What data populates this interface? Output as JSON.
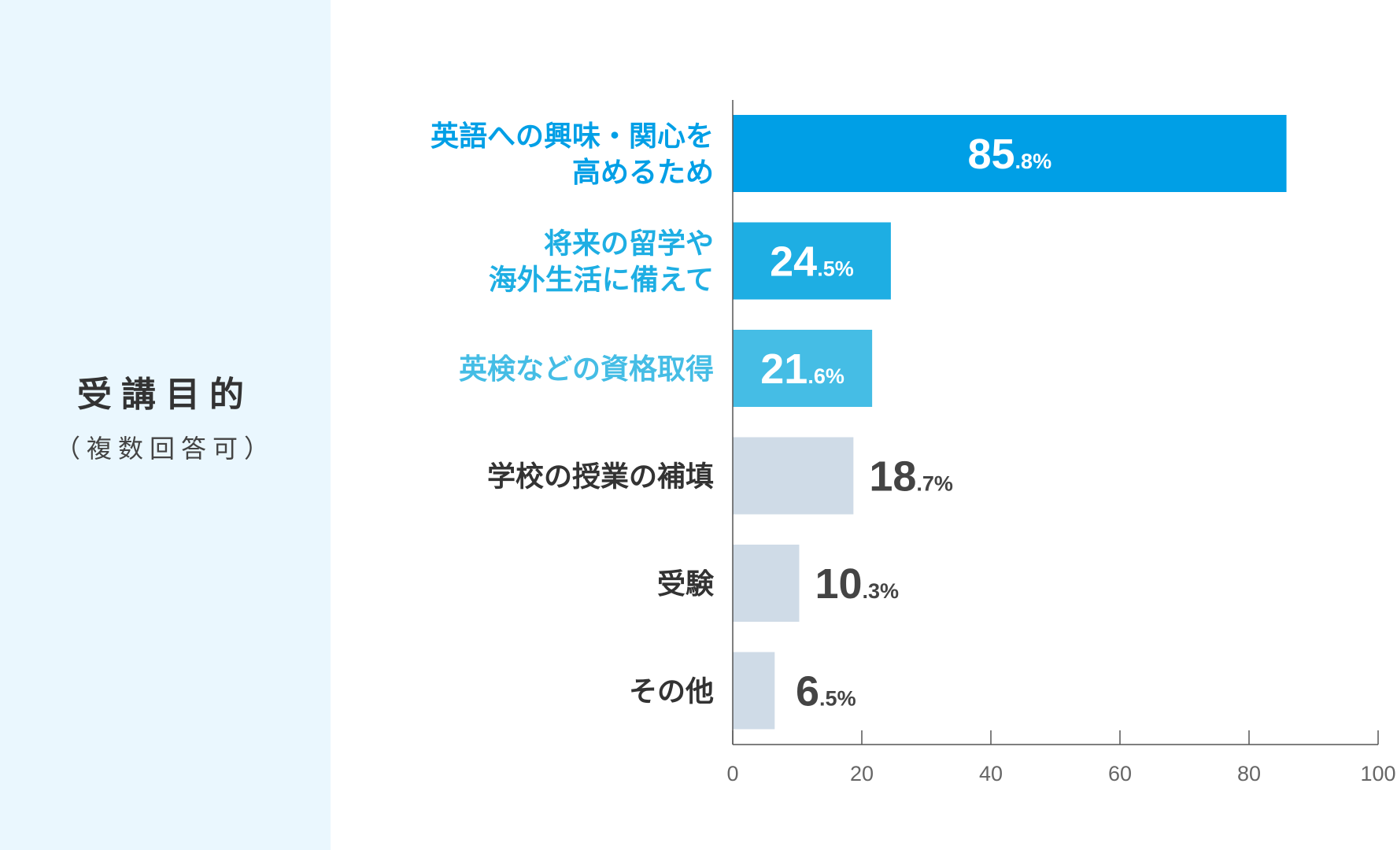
{
  "side": {
    "title": "受講目的",
    "subtitle": "（複数回答可）"
  },
  "colors": {
    "panel_bg": "#eaf7fe",
    "label_gray": "#333333",
    "value_gray": "#444444",
    "axis": "#555555"
  },
  "chart_data": {
    "type": "bar",
    "orientation": "horizontal",
    "categories": [
      [
        "英語への興味・関心を",
        "高めるため"
      ],
      [
        "将来の留学や",
        "海外生活に備えて"
      ],
      [
        "英検などの資格取得"
      ],
      [
        "学校の授業の補填"
      ],
      [
        "受験"
      ],
      [
        "その他"
      ]
    ],
    "values": [
      85.8,
      24.5,
      21.6,
      18.7,
      10.3,
      6.5
    ],
    "value_labels": [
      {
        "int": "85",
        "dec": ".8%"
      },
      {
        "int": "24",
        "dec": ".5%"
      },
      {
        "int": "21",
        "dec": ".6%"
      },
      {
        "int": "18",
        "dec": ".7%"
      },
      {
        "int": "10",
        "dec": ".3%"
      },
      {
        "int": "6",
        "dec": ".5%"
      }
    ],
    "bar_colors": [
      "#009fe6",
      "#1eaee3",
      "#45bde5",
      "#cfdbe7",
      "#cfdbe7",
      "#cfdbe7"
    ],
    "label_colors": [
      "#009fe6",
      "#1eaee3",
      "#45bde5",
      "#333333",
      "#333333",
      "#333333"
    ],
    "value_label_colors": [
      "#ffffff",
      "#ffffff",
      "#ffffff",
      "#444444",
      "#444444",
      "#444444"
    ],
    "xlim": [
      0,
      100
    ],
    "xticks": [
      0,
      20,
      40,
      60,
      80,
      100
    ],
    "grid": false
  }
}
